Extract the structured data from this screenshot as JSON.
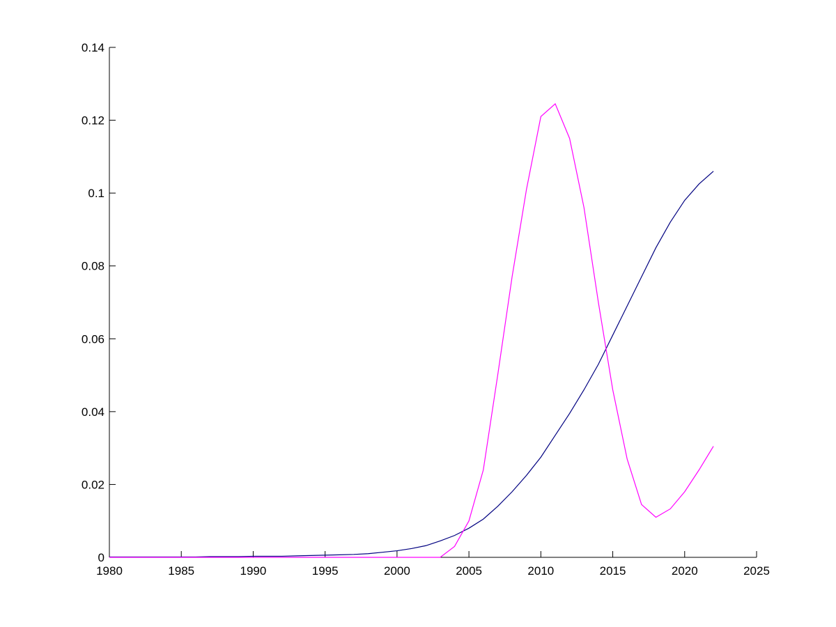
{
  "chart_data": {
    "type": "line",
    "x": [
      1980,
      1981,
      1982,
      1983,
      1984,
      1985,
      1986,
      1987,
      1988,
      1989,
      1990,
      1991,
      1992,
      1993,
      1994,
      1995,
      1996,
      1997,
      1998,
      1999,
      2000,
      2001,
      2002,
      2003,
      2004,
      2005,
      2006,
      2007,
      2008,
      2009,
      2010,
      2011,
      2012,
      2013,
      2014,
      2015,
      2016,
      2017,
      2018,
      2019,
      2020,
      2021,
      2022
    ],
    "series": [
      {
        "color": "#000080",
        "values": [
          0.0001,
          0.0001,
          0.0001,
          0.0001,
          0.0001,
          0.0001,
          0.0001,
          0.0002,
          0.0002,
          0.0002,
          0.0003,
          0.0003,
          0.0003,
          0.0004,
          0.0005,
          0.0006,
          0.0007,
          0.0008,
          0.001,
          0.0014,
          0.0018,
          0.0024,
          0.0032,
          0.0045,
          0.006,
          0.008,
          0.0105,
          0.014,
          0.018,
          0.0225,
          0.0275,
          0.0335,
          0.0395,
          0.046,
          0.053,
          0.061,
          0.069,
          0.077,
          0.085,
          0.092,
          0.098,
          0.1025,
          0.106
        ]
      },
      {
        "color": "#ff00ff",
        "values": [
          0,
          0,
          0,
          0,
          0,
          0,
          0,
          0,
          0,
          0,
          0,
          0,
          0,
          0,
          0,
          0,
          0,
          0,
          0,
          0,
          0,
          0,
          0,
          0,
          0.003,
          0.01,
          0.024,
          0.05,
          0.077,
          0.101,
          0.121,
          0.1245,
          0.115,
          0.096,
          0.07,
          0.046,
          0.027,
          0.0145,
          0.011,
          0.0133,
          0.018,
          0.024,
          0.0305
        ]
      }
    ],
    "xlim": [
      1980,
      2025
    ],
    "xticks": [
      1980,
      1985,
      1990,
      1995,
      2000,
      2005,
      2010,
      2015,
      2020,
      2025
    ],
    "ylim": [
      0,
      0.14
    ],
    "yticks": [
      0,
      0.02,
      0.04,
      0.06,
      0.08,
      0.1,
      0.12,
      0.14
    ]
  }
}
